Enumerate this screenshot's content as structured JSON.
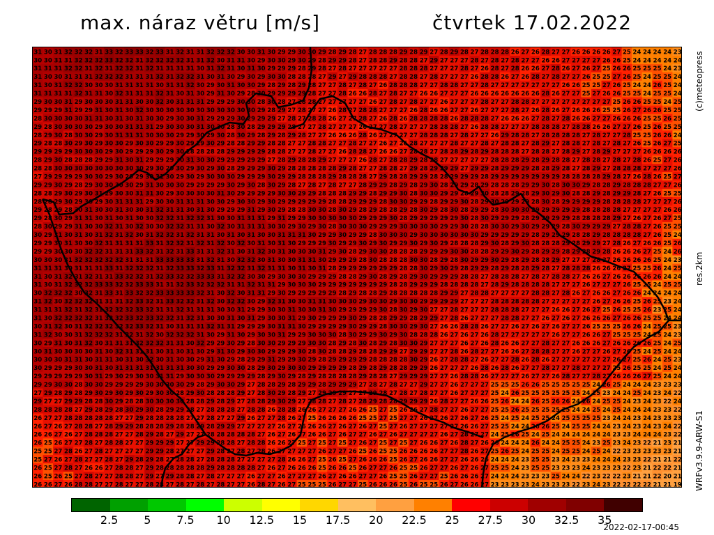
{
  "header": {
    "title": "max. náraz větru [m/s]",
    "date": "čtvrtek 17.02.2022"
  },
  "side_labels": {
    "copyright": "(c)meteopress",
    "resolution": "res.2km",
    "model": "WRFv3.9.9-ARW-S1"
  },
  "footer": {
    "timestamp": "2022-02-17-00:45"
  },
  "legend": {
    "colors": [
      "#006400",
      "#00a000",
      "#00c800",
      "#00ff00",
      "#ccff00",
      "#ffff00",
      "#ffd700",
      "#ffbf60",
      "#ffa040",
      "#ff8000",
      "#ff0000",
      "#cc0000",
      "#a00000",
      "#800000",
      "#400000"
    ],
    "labels": [
      "2.5",
      "5",
      "7.5",
      "10",
      "12.5",
      "15",
      "17.5",
      "20",
      "22.5",
      "25",
      "27.5",
      "30",
      "32.5",
      "35"
    ]
  },
  "map": {
    "grid_cols": 64,
    "grid_rows": 53,
    "border_color": "#000000",
    "value_colors": {
      "19": "#ffa040",
      "20": "#ffa040",
      "21": "#ffa040",
      "22": "#ff9030",
      "23": "#ff8c1a",
      "24": "#ff8000",
      "25": "#ff5000",
      "26": "#ff2000",
      "27": "#e81000",
      "28": "#d40800",
      "29": "#c00400",
      "30": "#b40000",
      "31": "#a80000",
      "32": "#9a0000",
      "33": "#900000"
    }
  }
}
